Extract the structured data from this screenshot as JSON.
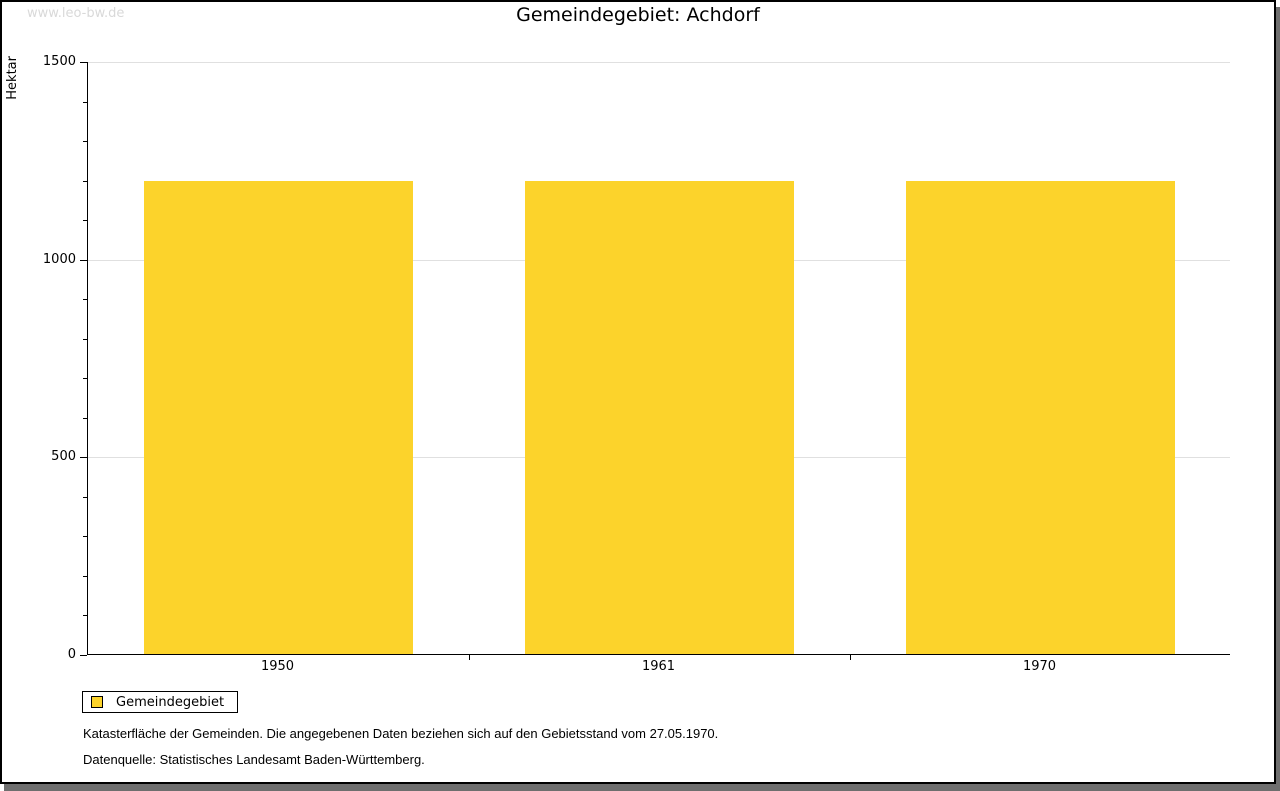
{
  "watermark": "www.leo-bw.de",
  "chart_data": {
    "type": "bar",
    "title": "Gemeindegebiet:  Achdorf",
    "ylabel": "Hektar",
    "categories": [
      "1950",
      "1961",
      "1970"
    ],
    "series": [
      {
        "name": "Gemeindegebiet",
        "values": [
          1196,
          1196,
          1196
        ]
      }
    ],
    "ylim": [
      0,
      1500
    ],
    "ytick_major": 500,
    "ytick_minor": 100,
    "grid": "horizontal-major",
    "legend_position": "bottom-left",
    "bar_color": "#fcd32b",
    "gridline_color": "#e0e0e0"
  },
  "legend": {
    "label": "Gemeindegebiet"
  },
  "footer": {
    "line1": "Katasterfläche der Gemeinden. Die angegebenen Daten beziehen sich auf den Gebietsstand vom 27.05.1970.",
    "line2": "Datenquelle: Statistisches Landesamt Baden-Württemberg."
  }
}
